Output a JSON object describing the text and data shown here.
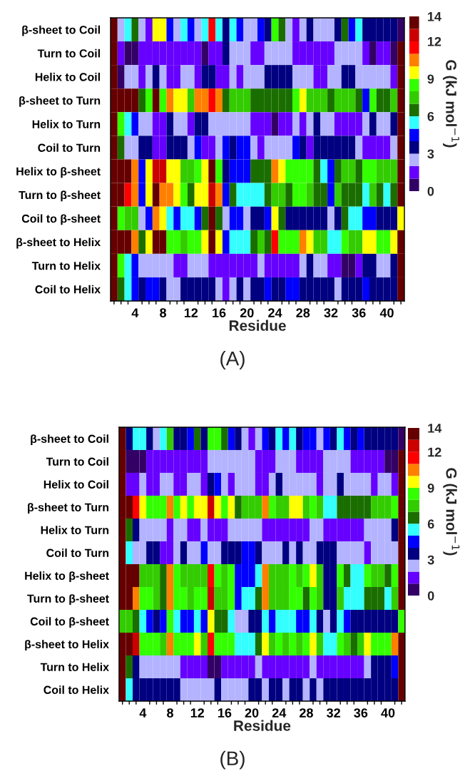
{
  "chart_data": [
    {
      "type": "heatmap",
      "xlabel": "Residue",
      "clabel": "G (kJ mol$^{−1}$)",
      "annotations": [
        "(A)"
      ],
      "x": [
        1,
        2,
        3,
        4,
        5,
        6,
        7,
        8,
        9,
        10,
        11,
        12,
        13,
        14,
        15,
        16,
        17,
        18,
        19,
        20,
        21,
        22,
        23,
        24,
        25,
        26,
        27,
        28,
        29,
        30,
        31,
        32,
        33,
        34,
        35,
        36,
        37,
        38,
        39,
        40,
        41,
        42
      ],
      "xlim": [
        0.5,
        42.5
      ],
      "xticks": [
        {
          "value": 1,
          "label": null
        },
        {
          "value": 2,
          "label": null
        },
        {
          "value": 3,
          "label": null
        },
        4,
        {
          "value": 5,
          "label": null
        },
        {
          "value": 6,
          "label": null
        },
        {
          "value": 7,
          "label": null
        },
        8,
        {
          "value": 9,
          "label": null
        },
        {
          "value": 10,
          "label": null
        },
        {
          "value": 11,
          "label": null
        },
        12,
        {
          "value": 13,
          "label": null
        },
        {
          "value": 14,
          "label": null
        },
        {
          "value": 15,
          "label": null
        },
        16,
        {
          "value": 17,
          "label": null
        },
        {
          "value": 18,
          "label": null
        },
        {
          "value": 19,
          "label": null
        },
        20,
        {
          "value": 21,
          "label": null
        },
        {
          "value": 22,
          "label": null
        },
        {
          "value": 23,
          "label": null
        },
        24,
        {
          "value": 25,
          "label": null
        },
        {
          "value": 26,
          "label": null
        },
        {
          "value": 27,
          "label": null
        },
        28,
        {
          "value": 29,
          "label": null
        },
        {
          "value": 30,
          "label": null
        },
        {
          "value": 31,
          "label": null
        },
        32,
        {
          "value": 33,
          "label": null
        },
        {
          "value": 34,
          "label": null
        },
        {
          "value": 35,
          "label": null
        },
        36,
        {
          "value": 37,
          "label": null
        },
        {
          "value": 38,
          "label": null
        },
        {
          "value": 39,
          "label": null
        },
        40,
        {
          "value": 41,
          "label": null
        },
        {
          "value": 42,
          "label": null
        }
      ],
      "y_categories": [
        "β-sheet to Coil",
        "Turn to Coil",
        "Helix to Coil",
        "β-sheet to Turn",
        "Helix to Turn",
        "Coil to Turn",
        "Helix to β-sheet",
        "Turn to β-sheet",
        "Coil to β-sheet",
        "β-sheet to Helix",
        "Turn to Helix",
        "Coil to Helix"
      ],
      "colors": [
        "#330066",
        "#6600ff",
        "#b3b3ff",
        "#000080",
        "#0000ff",
        "#33ffff",
        "#1a6e00",
        "#33cc00",
        "#33ff00",
        "#ffff00",
        "#ff8000",
        "#ff0000",
        "#cc0000",
        "#660000"
      ],
      "clim": [
        0,
        14
      ],
      "cticks": [
        0,
        3,
        6,
        9,
        12,
        14
      ],
      "cells": [
        [
          13.5,
          2.5,
          5.5,
          6.5,
          2.5,
          1.5,
          9.5,
          9.5,
          4.5,
          2.5,
          5.5,
          4.5,
          2.5,
          5.5,
          11.5,
          5.5,
          3.5,
          5.5,
          4.5,
          2.5,
          2.5,
          4.5,
          3.5,
          8.5,
          6.5,
          2.5,
          1.5,
          2.5,
          3.5,
          2.5,
          2.5,
          2.5,
          3.5,
          6.5,
          4.5,
          5.5,
          3.5,
          3.5,
          3.5,
          3.5,
          3.5,
          0.5
        ],
        [
          13.5,
          1.5,
          0.5,
          0.5,
          1.5,
          1.5,
          1.5,
          1.5,
          1.5,
          1.5,
          1.5,
          1.5,
          1.5,
          0.5,
          1.5,
          1.5,
          3.5,
          2.5,
          2.5,
          2.5,
          1.5,
          1.5,
          2.5,
          2.5,
          2.5,
          2.5,
          1.5,
          1.5,
          1.5,
          1.5,
          1.5,
          1.5,
          2.5,
          2.5,
          2.5,
          2.5,
          1.5,
          0.5,
          1.5,
          1.5,
          0.5,
          13.5
        ],
        [
          13.5,
          0.5,
          2.5,
          2.5,
          1.5,
          2.5,
          3.5,
          2.5,
          1.5,
          1.5,
          2.5,
          2.5,
          1.5,
          3.5,
          3.5,
          1.5,
          1.5,
          2.5,
          1.5,
          2.5,
          2.5,
          2.5,
          3.5,
          3.5,
          3.5,
          3.5,
          2.5,
          2.5,
          2.5,
          1.5,
          1.5,
          2.5,
          2.5,
          3.5,
          3.5,
          2.5,
          2.5,
          2.5,
          2.5,
          2.5,
          1.5,
          13.5
        ],
        [
          13.5,
          13.5,
          13.5,
          13.5,
          6.5,
          8.5,
          13.5,
          8.5,
          10.5,
          9.5,
          9.5,
          7.5,
          10.5,
          10.5,
          11.5,
          10.5,
          6.5,
          7.5,
          7.5,
          7.5,
          6.5,
          6.5,
          6.5,
          6.5,
          6.5,
          6.5,
          8.5,
          9.5,
          7.5,
          7.5,
          7.5,
          6.5,
          7.5,
          7.5,
          7.5,
          6.5,
          4.5,
          8.5,
          6.5,
          6.5,
          7.5,
          13.5
        ],
        [
          13.5,
          8.5,
          5.5,
          4.5,
          2.5,
          2.5,
          1.5,
          1.5,
          3.5,
          2.5,
          2.5,
          1.5,
          3.5,
          3.5,
          2.5,
          2.5,
          2.5,
          2.5,
          2.5,
          2.5,
          1.5,
          1.5,
          1.5,
          0.5,
          1.5,
          1.5,
          2.5,
          1.5,
          2.5,
          3.5,
          2.5,
          2.5,
          1.5,
          1.5,
          1.5,
          1.5,
          2.5,
          3.5,
          2.5,
          2.5,
          3.5,
          13.5
        ],
        [
          13.5,
          6.5,
          2.5,
          2.5,
          3.5,
          3.5,
          1.5,
          1.5,
          3.5,
          3.5,
          3.5,
          2.5,
          4.5,
          1.5,
          1.5,
          2.5,
          4.5,
          3.5,
          4.5,
          4.5,
          2.5,
          1.5,
          2.5,
          2.5,
          2.5,
          2.5,
          4.5,
          3.5,
          1.5,
          3.5,
          3.5,
          3.5,
          3.5,
          3.5,
          3.5,
          2.5,
          1.5,
          1.5,
          1.5,
          1.5,
          2.5,
          13.5
        ],
        [
          13.5,
          13.5,
          13.5,
          10.5,
          4.5,
          9.5,
          12.5,
          12.5,
          9.5,
          9.5,
          7.5,
          7.5,
          8.5,
          9.5,
          13.5,
          8.5,
          3.5,
          4.5,
          4.5,
          4.5,
          6.5,
          6.5,
          6.5,
          10.5,
          9.5,
          8.5,
          8.5,
          8.5,
          8.5,
          6.5,
          5.5,
          4.5,
          6.5,
          7.5,
          7.5,
          6.5,
          8.5,
          8.5,
          7.5,
          7.5,
          7.5,
          13.5
        ],
        [
          13.5,
          13.5,
          11.5,
          10.5,
          4.5,
          9.5,
          13.5,
          10.5,
          10.5,
          9.5,
          8.5,
          6.5,
          9.5,
          9.5,
          12.5,
          10.5,
          4.5,
          6.5,
          5.5,
          5.5,
          5.5,
          5.5,
          6.5,
          7.5,
          7.5,
          6.5,
          8.5,
          8.5,
          7.5,
          6.5,
          6.5,
          4.5,
          7.5,
          6.5,
          6.5,
          6.5,
          5.5,
          7.5,
          6.5,
          5.5,
          6.5,
          13.5
        ],
        [
          13.5,
          8.5,
          7.5,
          7.5,
          2.5,
          4.5,
          10.5,
          9.5,
          5.5,
          4.5,
          5.5,
          5.5,
          4.5,
          6.5,
          13.5,
          6.5,
          2.5,
          4.5,
          4.5,
          2.5,
          3.5,
          3.5,
          4.5,
          9.5,
          6.5,
          3.5,
          3.5,
          3.5,
          3.5,
          3.5,
          3.5,
          2.5,
          3.5,
          6.5,
          5.5,
          5.5,
          4.5,
          4.5,
          3.5,
          3.5,
          3.5,
          9.5
        ],
        [
          13.5,
          13.5,
          13.5,
          10.5,
          6.5,
          9.5,
          13.5,
          13.5,
          8.5,
          8.5,
          7.5,
          8.5,
          8.5,
          9.5,
          13.5,
          9.5,
          4.5,
          5.5,
          5.5,
          5.5,
          6.5,
          7.5,
          6.5,
          11.5,
          8.5,
          8.5,
          8.5,
          10.5,
          9.5,
          7.5,
          7.5,
          5.5,
          5.5,
          8.5,
          7.5,
          7.5,
          9.5,
          9.5,
          8.5,
          8.5,
          9.5,
          13.5
        ],
        [
          13.5,
          8.5,
          5.5,
          4.5,
          2.5,
          2.5,
          2.5,
          2.5,
          2.5,
          1.5,
          1.5,
          2.5,
          2.5,
          2.5,
          1.5,
          1.5,
          1.5,
          1.5,
          1.5,
          1.5,
          1.5,
          2.5,
          1.5,
          1.5,
          1.5,
          1.5,
          1.5,
          2.5,
          3.5,
          2.5,
          2.5,
          1.5,
          1.5,
          0.5,
          0.5,
          1.5,
          3.5,
          3.5,
          2.5,
          2.5,
          3.5,
          13.5
        ],
        [
          13.5,
          6.5,
          5.5,
          4.5,
          3.5,
          4.5,
          4.5,
          3.5,
          2.5,
          2.5,
          3.5,
          3.5,
          3.5,
          3.5,
          3.5,
          2.5,
          1.5,
          2.5,
          3.5,
          2.5,
          3.5,
          3.5,
          4.5,
          3.5,
          3.5,
          4.5,
          4.5,
          3.5,
          3.5,
          3.5,
          3.5,
          3.5,
          2.5,
          3.5,
          3.5,
          3.5,
          4.5,
          3.5,
          3.5,
          3.5,
          3.5,
          13.5
        ]
      ]
    },
    {
      "type": "heatmap",
      "xlabel": "Residue",
      "clabel": "G (kJ mol$^{−1}$)",
      "annotations": [
        "(B)"
      ],
      "x": [
        1,
        2,
        3,
        4,
        5,
        6,
        7,
        8,
        9,
        10,
        11,
        12,
        13,
        14,
        15,
        16,
        17,
        18,
        19,
        20,
        21,
        22,
        23,
        24,
        25,
        26,
        27,
        28,
        29,
        30,
        31,
        32,
        33,
        34,
        35,
        36,
        37,
        38,
        39,
        40,
        41,
        42
      ],
      "xlim": [
        0.5,
        42.5
      ],
      "xticks": [
        {
          "value": 1,
          "label": null
        },
        {
          "value": 2,
          "label": null
        },
        {
          "value": 3,
          "label": null
        },
        4,
        {
          "value": 5,
          "label": null
        },
        {
          "value": 6,
          "label": null
        },
        {
          "value": 7,
          "label": null
        },
        8,
        {
          "value": 9,
          "label": null
        },
        {
          "value": 10,
          "label": null
        },
        {
          "value": 11,
          "label": null
        },
        12,
        {
          "value": 13,
          "label": null
        },
        {
          "value": 14,
          "label": null
        },
        {
          "value": 15,
          "label": null
        },
        16,
        {
          "value": 17,
          "label": null
        },
        {
          "value": 18,
          "label": null
        },
        {
          "value": 19,
          "label": null
        },
        20,
        {
          "value": 21,
          "label": null
        },
        {
          "value": 22,
          "label": null
        },
        {
          "value": 23,
          "label": null
        },
        24,
        {
          "value": 25,
          "label": null
        },
        {
          "value": 26,
          "label": null
        },
        {
          "value": 27,
          "label": null
        },
        28,
        {
          "value": 29,
          "label": null
        },
        {
          "value": 30,
          "label": null
        },
        {
          "value": 31,
          "label": null
        },
        32,
        {
          "value": 33,
          "label": null
        },
        {
          "value": 34,
          "label": null
        },
        {
          "value": 35,
          "label": null
        },
        36,
        {
          "value": 37,
          "label": null
        },
        {
          "value": 38,
          "label": null
        },
        {
          "value": 39,
          "label": null
        },
        40,
        {
          "value": 41,
          "label": null
        },
        {
          "value": 42,
          "label": null
        }
      ],
      "y_categories": [
        "β-sheet to Coil",
        "Turn to Coil",
        "Helix to Coil",
        "β-sheet to Turn",
        "Helix to Turn",
        "Coil to Turn",
        "Helix to β-sheet",
        "Turn to β-sheet",
        "Coil to β-sheet",
        "β-sheet to Helix",
        "Turn to Helix",
        "Coil to Helix"
      ],
      "colors": [
        "#330066",
        "#6600ff",
        "#b3b3ff",
        "#000080",
        "#0000ff",
        "#33ffff",
        "#1a6e00",
        "#33cc00",
        "#33ff00",
        "#ffff00",
        "#ff8000",
        "#ff0000",
        "#cc0000",
        "#660000"
      ],
      "clim": [
        0,
        14
      ],
      "cticks": [
        0,
        3,
        6,
        9,
        12,
        14
      ],
      "cells": [
        [
          13.5,
          3.5,
          5.5,
          5.5,
          3.5,
          2.5,
          5.5,
          7.5,
          3.5,
          3.5,
          4.5,
          6.5,
          3.5,
          8.5,
          8.5,
          6.5,
          4.5,
          3.5,
          2.5,
          1.5,
          2.5,
          4.5,
          3.5,
          5.5,
          4.5,
          5.5,
          3.5,
          4.5,
          4.5,
          2.5,
          4.5,
          3.5,
          5.5,
          4.5,
          3.5,
          4.5,
          3.5,
          3.5,
          3.5,
          3.5,
          3.5,
          0.5
        ],
        [
          13.5,
          0.5,
          0.5,
          0.5,
          1.5,
          1.5,
          1.5,
          1.5,
          1.5,
          1.5,
          1.5,
          1.5,
          1.5,
          2.5,
          2.5,
          2.5,
          2.5,
          2.5,
          2.5,
          2.5,
          1.5,
          1.5,
          1.5,
          2.5,
          2.5,
          2.5,
          1.5,
          1.5,
          1.5,
          1.5,
          2.5,
          2.5,
          2.5,
          2.5,
          1.5,
          1.5,
          1.5,
          1.5,
          1.5,
          0.5,
          0.5,
          13.5
        ],
        [
          13.5,
          1.5,
          1.5,
          2.5,
          1.5,
          1.5,
          2.5,
          2.5,
          1.5,
          1.5,
          2.5,
          2.5,
          1.5,
          3.5,
          4.5,
          2.5,
          1.5,
          2.5,
          2.5,
          2.5,
          1.5,
          1.5,
          2.5,
          3.5,
          2.5,
          2.5,
          2.5,
          2.5,
          2.5,
          1.5,
          2.5,
          2.5,
          3.5,
          2.5,
          2.5,
          2.5,
          2.5,
          1.5,
          2.5,
          2.5,
          1.5,
          13.5
        ],
        [
          13.5,
          13.5,
          11.5,
          9.5,
          8.5,
          8.5,
          8.5,
          10.5,
          8.5,
          9.5,
          8.5,
          9.5,
          9.5,
          12.5,
          9.5,
          8.5,
          9.5,
          6.5,
          7.5,
          7.5,
          7.5,
          10.5,
          8.5,
          7.5,
          7.5,
          9.5,
          9.5,
          7.5,
          8.5,
          7.5,
          5.5,
          5.5,
          6.5,
          6.5,
          6.5,
          6.5,
          6.5,
          7.5,
          7.5,
          7.5,
          8.5,
          13.5
        ],
        [
          13.5,
          6.5,
          3.5,
          2.5,
          2.5,
          2.5,
          2.5,
          1.5,
          2.5,
          2.5,
          1.5,
          1.5,
          2.5,
          1.5,
          1.5,
          1.5,
          2.5,
          2.5,
          2.5,
          2.5,
          2.5,
          1.5,
          1.5,
          1.5,
          1.5,
          1.5,
          1.5,
          1.5,
          2.5,
          2.5,
          1.5,
          1.5,
          1.5,
          1.5,
          1.5,
          1.5,
          2.5,
          2.5,
          2.5,
          2.5,
          3.5,
          13.5
        ],
        [
          13.5,
          5.5,
          2.5,
          2.5,
          3.5,
          3.5,
          1.5,
          1.5,
          2.5,
          3.5,
          2.5,
          2.5,
          4.5,
          2.5,
          2.5,
          3.5,
          3.5,
          3.5,
          4.5,
          4.5,
          3.5,
          2.5,
          2.5,
          2.5,
          3.5,
          2.5,
          3.5,
          2.5,
          2.5,
          3.5,
          3.5,
          3.5,
          2.5,
          2.5,
          2.5,
          2.5,
          1.5,
          2.5,
          2.5,
          2.5,
          2.5,
          13.5
        ],
        [
          13.5,
          13.5,
          13.5,
          7.5,
          7.5,
          7.5,
          6.5,
          10.5,
          8.5,
          7.5,
          7.5,
          7.5,
          7.5,
          11.5,
          8.5,
          7.5,
          8.5,
          4.5,
          4.5,
          4.5,
          5.5,
          10.5,
          7.5,
          7.5,
          7.5,
          8.5,
          7.5,
          8.5,
          9.5,
          7.5,
          3.5,
          3.5,
          8.5,
          6.5,
          5.5,
          5.5,
          8.5,
          7.5,
          7.5,
          6.5,
          8.5,
          13.5
        ],
        [
          13.5,
          13.5,
          10.5,
          8.5,
          8.5,
          7.5,
          6.5,
          10.5,
          8.5,
          8.5,
          7.5,
          8.5,
          8.5,
          12.5,
          7.5,
          7.5,
          8.5,
          4.5,
          5.5,
          5.5,
          6.5,
          10.5,
          7.5,
          7.5,
          7.5,
          8.5,
          8.5,
          6.5,
          8.5,
          7.5,
          3.5,
          3.5,
          7.5,
          5.5,
          5.5,
          5.5,
          6.5,
          6.5,
          6.5,
          5.5,
          7.5,
          13.5
        ],
        [
          7.5,
          7.5,
          6.5,
          5.5,
          4.5,
          3.5,
          4.5,
          8.5,
          5.5,
          4.5,
          4.5,
          5.5,
          4.5,
          9.5,
          6.5,
          6.5,
          5.5,
          2.5,
          2.5,
          3.5,
          3.5,
          5.5,
          4.5,
          5.5,
          5.5,
          5.5,
          4.5,
          4.5,
          5.5,
          3.5,
          2.5,
          3.5,
          5.5,
          4.5,
          3.5,
          3.5,
          3.5,
          3.5,
          3.5,
          3.5,
          3.5,
          8.5
        ],
        [
          13.5,
          13.5,
          12.5,
          8.5,
          8.5,
          8.5,
          7.5,
          10.5,
          8.5,
          8.5,
          8.5,
          9.5,
          7.5,
          11.5,
          8.5,
          8.5,
          8.5,
          5.5,
          5.5,
          5.5,
          6.5,
          9.5,
          7.5,
          8.5,
          7.5,
          8.5,
          7.5,
          8.5,
          9.5,
          7.5,
          5.5,
          5.5,
          8.5,
          7.5,
          6.5,
          7.5,
          9.5,
          8.5,
          8.5,
          8.5,
          10.5,
          13.5
        ],
        [
          13.5,
          6.5,
          3.5,
          2.5,
          2.5,
          2.5,
          2.5,
          2.5,
          2.5,
          1.5,
          1.5,
          1.5,
          1.5,
          0.5,
          0.5,
          1.5,
          1.5,
          1.5,
          1.5,
          1.5,
          2.5,
          1.5,
          1.5,
          1.5,
          1.5,
          1.5,
          1.5,
          1.5,
          2.5,
          1.5,
          1.5,
          1.5,
          1.5,
          1.5,
          1.5,
          1.5,
          2.5,
          3.5,
          3.5,
          3.5,
          4.5,
          13.5
        ],
        [
          13.5,
          5.5,
          3.5,
          3.5,
          3.5,
          3.5,
          3.5,
          3.5,
          3.5,
          2.5,
          2.5,
          2.5,
          2.5,
          2.5,
          3.5,
          2.5,
          2.5,
          2.5,
          2.5,
          3.5,
          3.5,
          2.5,
          3.5,
          3.5,
          2.5,
          3.5,
          3.5,
          2.5,
          3.5,
          2.5,
          3.5,
          3.5,
          3.5,
          3.5,
          3.5,
          3.5,
          3.5,
          3.5,
          3.5,
          3.5,
          3.5,
          13.5
        ]
      ]
    }
  ]
}
